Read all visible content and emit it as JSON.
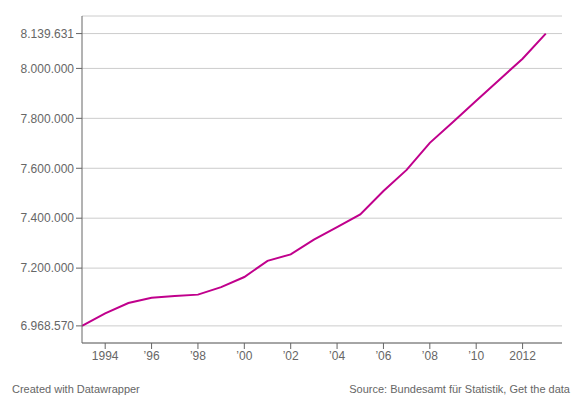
{
  "chart_data": {
    "type": "line",
    "x": [
      1993,
      1994,
      1995,
      1996,
      1997,
      1998,
      1999,
      2000,
      2001,
      2002,
      2003,
      2004,
      2005,
      2006,
      2007,
      2008,
      2009,
      2010,
      2011,
      2012,
      2013
    ],
    "values": [
      6968570,
      7019069,
      7060000,
      7081000,
      7088000,
      7093800,
      7124000,
      7164400,
      7229000,
      7255000,
      7313853,
      7364148,
      7415102,
      7508739,
      7593494,
      7701900,
      7785800,
      7870134,
      7954662,
      8039060,
      8139631
    ],
    "color": "#c0008c",
    "xlim": [
      1993.0,
      2013.7
    ],
    "xticks": [
      1994,
      {
        "value": 1996,
        "label": "’96"
      },
      {
        "value": 1998,
        "label": "’98"
      },
      {
        "value": 2000,
        "label": "’00"
      },
      {
        "value": 2002,
        "label": "’02"
      },
      {
        "value": 2004,
        "label": "’04"
      },
      {
        "value": 2006,
        "label": "’06"
      },
      {
        "value": 2008,
        "label": "’08"
      },
      {
        "value": 2010,
        "label": "’10"
      },
      2012
    ],
    "ylim": [
      6900000,
      8210000
    ],
    "yticks": [
      {
        "value": 6968570,
        "label": "6.968.570"
      },
      {
        "value": 7200000,
        "label": "7.200.000"
      },
      {
        "value": 7400000,
        "label": "7.400.000"
      },
      {
        "value": 7600000,
        "label": "7.600.000"
      },
      {
        "value": 7800000,
        "label": "7.800.000"
      },
      {
        "value": 8000000,
        "label": "8.000.000"
      },
      {
        "value": 8139631,
        "label": "8.139.631"
      }
    ],
    "grid": true,
    "annotations": [
      "Created with Datawrapper",
      "Source: Bundesamt für Statistik, Get the data"
    ]
  }
}
